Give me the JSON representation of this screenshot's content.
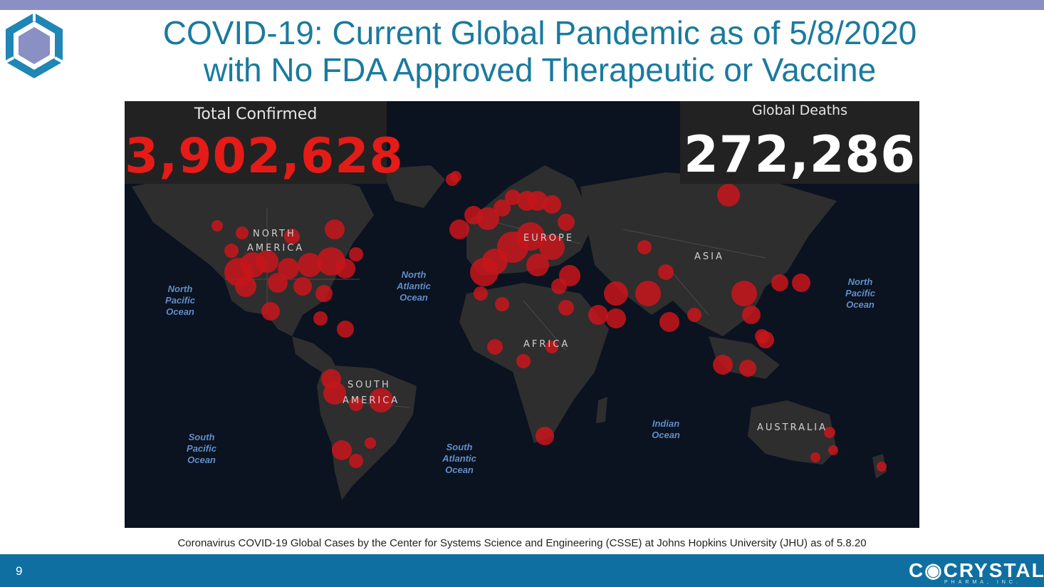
{
  "slide": {
    "title_line1": "COVID-19: Current Global Pandemic as of 5/8/2020",
    "title_line2": "with No FDA Approved Therapeutic or Vaccine",
    "page_number": "9",
    "caption": "Coronavirus COVID-19 Global Cases by the Center for Systems Science and Engineering (CSSE) at Johns Hopkins University (JHU) as of 5.8.20"
  },
  "stats": {
    "confirmed_label": "Total Confirmed",
    "confirmed_value": "3,902,628",
    "deaths_label": "Global Deaths",
    "deaths_value": "272,286"
  },
  "map": {
    "regions": {
      "north_america_1": "NORTH",
      "north_america_2": "AMERICA",
      "europe": "EUROPE",
      "asia": "ASIA",
      "africa": "AFRICA",
      "south_america_1": "SOUTH",
      "south_america_2": "AMERICA",
      "australia": "AUSTRALIA"
    },
    "oceans": {
      "north_pacific_west": [
        "North",
        "Pacific",
        "Ocean"
      ],
      "north_atlantic": [
        "North",
        "Atlantic",
        "Ocean"
      ],
      "north_pacific_east": [
        "North",
        "Pacific",
        "Ocean"
      ],
      "south_pacific": [
        "South",
        "Pacific",
        "Ocean"
      ],
      "south_atlantic": [
        "South",
        "Atlantic",
        "Ocean"
      ],
      "indian": [
        "Indian",
        "Ocean"
      ]
    }
  },
  "brand": {
    "name": "CQCRYSTAL",
    "name_display": "C◉CRYSTAL",
    "subtitle": "PHARMA, INC."
  },
  "colors": {
    "title": "#1a7a9f",
    "top_bar": "#8a8fc4",
    "footer": "#0f6fa1",
    "case_dot": "#c8151b",
    "map_land": "#2e2e2e",
    "map_ocean": "#0b1220"
  },
  "icons": {
    "logo": "hexagon-logo-icon"
  }
}
